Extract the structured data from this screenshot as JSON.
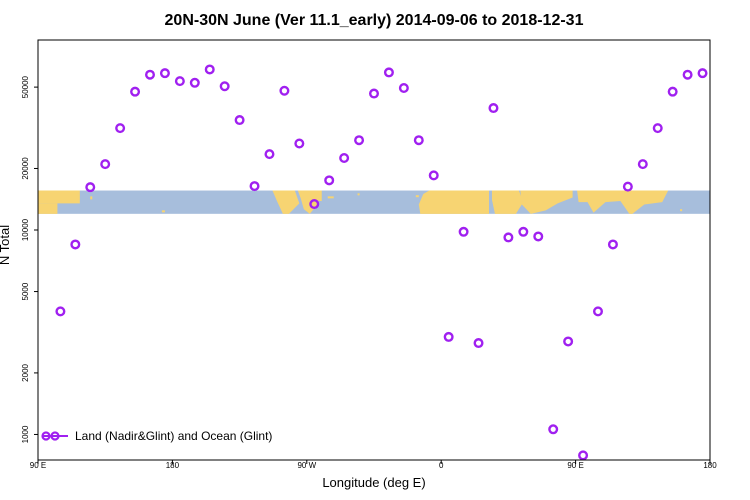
{
  "chart_data": {
    "type": "scatter",
    "title": "20N-30N June (Ver 11.1_early)   2014-09-06 to 2018-12-31",
    "xlabel": "Longitude (deg E)",
    "ylabel": "N Total",
    "x_scale": "linear",
    "y_scale": "log",
    "xlim": [
      90,
      540
    ],
    "ylim": [
      750,
      85000
    ],
    "x_ticks": [
      90,
      180,
      270,
      360,
      450,
      540
    ],
    "x_tick_labels": [
      "90 E",
      "180",
      "90 W",
      "0",
      "90 E",
      "180"
    ],
    "y_ticks": [
      1000,
      2000,
      5000,
      10000,
      20000,
      50000
    ],
    "y_tick_labels": [
      "1000",
      "2000",
      "5000",
      "10000",
      "20000",
      "50000"
    ],
    "grid": false,
    "legend_position": "bottom-left",
    "colors": {
      "series": "#a020f0",
      "map_land": "#f7d472",
      "map_ocean": "#a7bedc"
    },
    "series": [
      {
        "name": "Land (Nadir&Glint) and Ocean (Glint)",
        "x": [
          105,
          115,
          125,
          135,
          145,
          155,
          165,
          175,
          185,
          195,
          205,
          215,
          225,
          235,
          245,
          255,
          265,
          275,
          285,
          295,
          305,
          315,
          325,
          335,
          345,
          355,
          365,
          375,
          385,
          395,
          405,
          415,
          425,
          435,
          445,
          455,
          465,
          475,
          485,
          495,
          505,
          515,
          525,
          535
        ],
        "y": [
          4000,
          8500,
          16200,
          21000,
          31500,
          47500,
          57500,
          58500,
          53500,
          52500,
          61000,
          50500,
          34500,
          16400,
          23500,
          48000,
          26500,
          13400,
          17500,
          22500,
          27500,
          46500,
          59000,
          49500,
          27500,
          18500,
          3000,
          9800,
          2800,
          39500,
          9200,
          9800,
          9300,
          1060,
          2850,
          790,
          4000,
          8500,
          16300,
          21000,
          31500,
          47500,
          57500,
          58500
        ]
      }
    ],
    "map_band": {
      "lat_range": "20N-30N",
      "y_range": [
        12000,
        15600
      ]
    }
  }
}
